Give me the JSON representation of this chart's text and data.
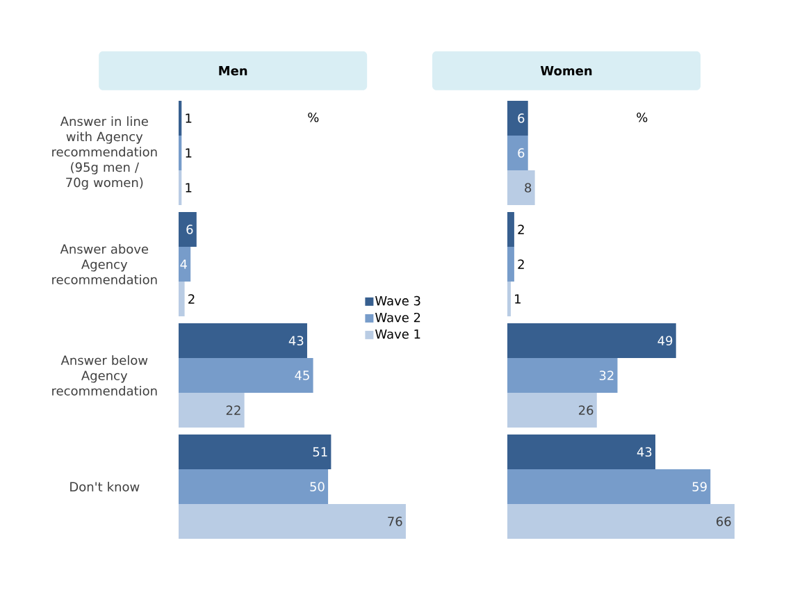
{
  "chart_data": [
    {
      "type": "bar",
      "orientation": "horizontal",
      "title": "Men",
      "categories": [
        "Answer in line with Agency recommendation (95g men / 70g women)",
        "Answer above Agency recommendation",
        "Answer below Agency recommendation",
        "Don't know"
      ],
      "data_labels": true,
      "legend": "right",
      "annotations": [
        "%"
      ],
      "series": [
        {
          "name": "Wave 3",
          "color": "#375f8f",
          "values": [
            1,
            6,
            43,
            51
          ]
        },
        {
          "name": "Wave 2",
          "color": "#779cca",
          "values": [
            1,
            4,
            45,
            50
          ]
        },
        {
          "name": "Wave 1",
          "color": "#b9cce4",
          "values": [
            1,
            2,
            22,
            76
          ]
        }
      ]
    },
    {
      "type": "bar",
      "orientation": "horizontal",
      "title": "Women",
      "categories": [
        null,
        null,
        null,
        null
      ],
      "tick_labels": false,
      "data_labels": true,
      "annotations": [
        "%"
      ],
      "series": [
        {
          "color": "#375f8f",
          "values": [
            6,
            2,
            49,
            43
          ]
        },
        {
          "color": "#779cca",
          "values": [
            6,
            2,
            32,
            59
          ]
        },
        {
          "color": "#b9cce4",
          "values": [
            8,
            1,
            26,
            66
          ]
        }
      ]
    }
  ]
}
